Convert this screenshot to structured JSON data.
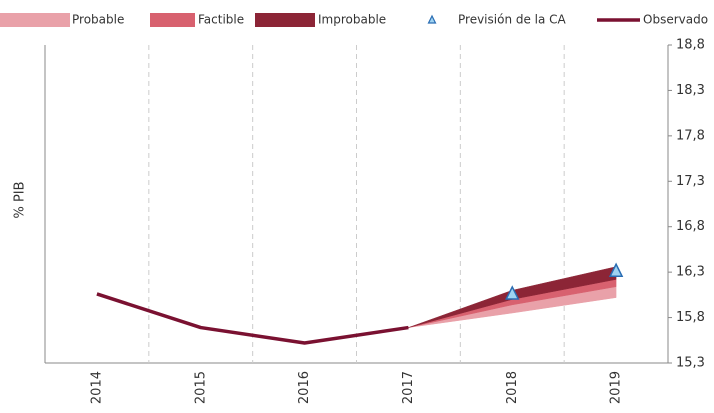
{
  "chart_data": {
    "type": "fan",
    "y_label": "% PIB",
    "categories": [
      "2014",
      "2015",
      "2016",
      "2017",
      "2018",
      "2019"
    ],
    "ylim": [
      15.3,
      18.8
    ],
    "yticks": [
      {
        "value": 15.3,
        "label": "15,3"
      },
      {
        "value": 15.8,
        "label": "15,8"
      },
      {
        "value": 16.3,
        "label": "16,3"
      },
      {
        "value": 16.8,
        "label": "16,8"
      },
      {
        "value": 17.3,
        "label": "17,3"
      },
      {
        "value": 17.8,
        "label": "17,8"
      },
      {
        "value": 18.3,
        "label": "18,3"
      },
      {
        "value": 18.8,
        "label": "18,8"
      }
    ],
    "bands": [
      {
        "name": "Probable",
        "color": "#e9a1a9",
        "low": [
          null,
          null,
          null,
          15.69,
          15.85,
          16.02
        ],
        "high": [
          null,
          null,
          null,
          15.69,
          15.94,
          16.14
        ]
      },
      {
        "name": "Factible",
        "color": "#d8616f",
        "low": [
          null,
          null,
          null,
          15.69,
          15.94,
          16.14
        ],
        "high": [
          null,
          null,
          null,
          15.69,
          16.0,
          16.22
        ]
      },
      {
        "name": "Improbable",
        "color": "#8c2536",
        "low": [
          null,
          null,
          null,
          15.69,
          16.0,
          16.22
        ],
        "high": [
          null,
          null,
          null,
          15.69,
          16.1,
          16.36
        ]
      }
    ],
    "series": [
      {
        "name": "Previsión de la CA",
        "color": "#9fd3f2",
        "marker": "triangle",
        "values": [
          null,
          null,
          null,
          null,
          16.06,
          16.31
        ]
      },
      {
        "name": "Observado",
        "color": "#7a1131",
        "marker": "line",
        "values": [
          16.06,
          15.69,
          15.52,
          15.69,
          null,
          null
        ]
      }
    ]
  }
}
